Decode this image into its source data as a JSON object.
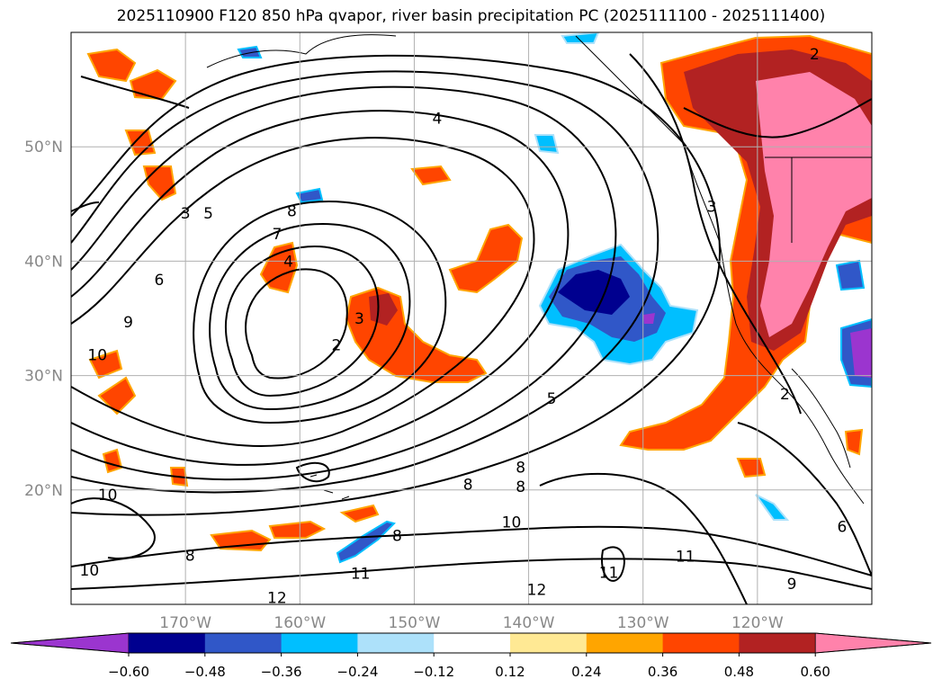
{
  "title": "2025110900 F120 850 hPa qvapor, river basin precipitation PC (2025111100 - 2025111400)",
  "map": {
    "lon_range": [
      -180,
      -110
    ],
    "lat_range": [
      10,
      60
    ],
    "lon_ticks": [
      {
        "value": -170,
        "label": "170°W"
      },
      {
        "value": -160,
        "label": "160°W"
      },
      {
        "value": -150,
        "label": "150°W"
      },
      {
        "value": -140,
        "label": "140°W"
      },
      {
        "value": -130,
        "label": "130°W"
      },
      {
        "value": -120,
        "label": "120°W"
      }
    ],
    "lat_ticks": [
      {
        "value": 20,
        "label": "20°N"
      },
      {
        "value": 30,
        "label": "30°N"
      },
      {
        "value": 40,
        "label": "40°N"
      },
      {
        "value": 50,
        "label": "50°N"
      }
    ],
    "gridlines": true,
    "tick_label_color": "#888888",
    "contour_color": "#000000",
    "contour_labels": [
      {
        "text": "4",
        "lon": -148,
        "lat": 52.5
      },
      {
        "text": "3",
        "lon": -170,
        "lat": 44.2
      },
      {
        "text": "5",
        "lon": -168,
        "lat": 44.2
      },
      {
        "text": "8",
        "lon": -160.7,
        "lat": 44.4
      },
      {
        "text": "7",
        "lon": -162,
        "lat": 42.4
      },
      {
        "text": "4",
        "lon": -161,
        "lat": 40
      },
      {
        "text": "6",
        "lon": -172.3,
        "lat": 38.4
      },
      {
        "text": "3",
        "lon": -154.8,
        "lat": 35
      },
      {
        "text": "2",
        "lon": -156.8,
        "lat": 32.7
      },
      {
        "text": "9",
        "lon": -175,
        "lat": 34.7
      },
      {
        "text": "10",
        "lon": -177.7,
        "lat": 31.8
      },
      {
        "text": "5",
        "lon": -138,
        "lat": 28
      },
      {
        "text": "3",
        "lon": -124,
        "lat": 44.8
      },
      {
        "text": "2",
        "lon": -115,
        "lat": 58.1
      },
      {
        "text": "8",
        "lon": -140.7,
        "lat": 22
      },
      {
        "text": "8",
        "lon": -140.7,
        "lat": 20.3
      },
      {
        "text": "8",
        "lon": -145.3,
        "lat": 20.5
      },
      {
        "text": "10",
        "lon": -176.8,
        "lat": 19.6
      },
      {
        "text": "8",
        "lon": -169.6,
        "lat": 14.3
      },
      {
        "text": "8",
        "lon": -151.5,
        "lat": 16
      },
      {
        "text": "10",
        "lon": -141.5,
        "lat": 17.2
      },
      {
        "text": "10",
        "lon": -178.4,
        "lat": 13
      },
      {
        "text": "11",
        "lon": -154.7,
        "lat": 12.7
      },
      {
        "text": "12",
        "lon": -162,
        "lat": 10.6
      },
      {
        "text": "12",
        "lon": -139.3,
        "lat": 11.3
      },
      {
        "text": "11",
        "lon": -133,
        "lat": 12.8
      },
      {
        "text": "11",
        "lon": -126.3,
        "lat": 14.2
      },
      {
        "text": "9",
        "lon": -117,
        "lat": 11.8
      },
      {
        "text": "6",
        "lon": -112.6,
        "lat": 16.8
      },
      {
        "text": "2",
        "lon": -117.6,
        "lat": 28.4
      }
    ]
  },
  "colorbar": {
    "tick_labels": [
      "−0.60",
      "−0.48",
      "−0.36",
      "−0.24",
      "−0.12",
      "0.12",
      "0.24",
      "0.36",
      "0.48",
      "0.60"
    ],
    "colors": [
      "#9b35cf",
      "#00008f",
      "#3057c8",
      "#00bfff",
      "#ade1fa",
      "#ffffff",
      "#ffe994",
      "#ffa500",
      "#ff4500",
      "#b22222",
      "#ff82ab"
    ],
    "extend": "both"
  },
  "shading_colors": {
    "neg_deep": "#00008f",
    "neg_mid": "#3057c8",
    "neg_light": "#00bfff",
    "neg_pale": "#ade1fa",
    "neg_purple": "#9b35cf",
    "pos_yellow": "#ffe994",
    "pos_orange": "#ffa500",
    "pos_redorange": "#ff4500",
    "pos_darkred": "#b22222",
    "pos_pink": "#ff82ab"
  }
}
